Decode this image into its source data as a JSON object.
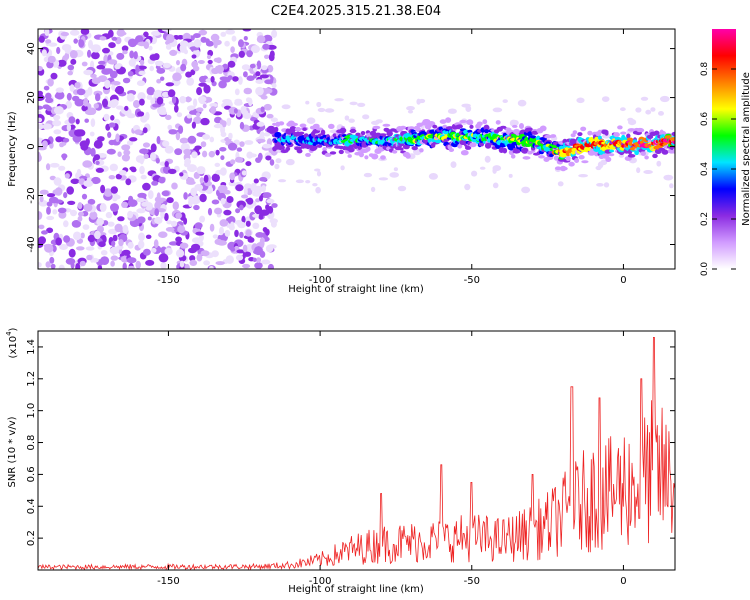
{
  "figure": {
    "title": "C2E4.2025.315.21.38.E04"
  },
  "chart_data": [
    {
      "type": "heatmap",
      "xlabel": "Height of straight line (km)",
      "ylabel": "Frequency (Hz)",
      "xlim": [
        -193,
        17
      ],
      "ylim": [
        -50,
        48
      ],
      "x_ticks": [
        -150,
        -100,
        -50,
        0
      ],
      "y_ticks": [
        -40,
        -20,
        0,
        20,
        40
      ],
      "colorbar": {
        "label": "Normalized spectral amplitude",
        "range": [
          0,
          0.96
        ],
        "ticks": [
          0.0,
          0.2,
          0.4,
          0.6,
          0.8
        ],
        "colors": [
          "#ffffff",
          "#d19bff",
          "#8b2be2",
          "#0000ff",
          "#00e5ff",
          "#00ff00",
          "#ffff00",
          "#ff7f00",
          "#ff0000",
          "#ff00aa"
        ]
      },
      "noise_region": {
        "x_range": [
          -193,
          -115
        ],
        "freq_range": [
          -50,
          48
        ],
        "typical_amplitude": 0.1
      },
      "signal_ridge": {
        "x": [
          -115,
          -110,
          -100,
          -90,
          -80,
          -70,
          -60,
          -50,
          -40,
          -30,
          -25,
          -20,
          -15,
          -10,
          -5,
          0,
          5,
          10,
          15,
          17
        ],
        "freq": [
          3,
          3,
          2,
          3,
          2,
          3,
          4,
          4,
          3,
          2,
          0,
          -3,
          0,
          1,
          1,
          1,
          1,
          1,
          2,
          2
        ],
        "amplitude": [
          0.3,
          0.4,
          0.35,
          0.45,
          0.4,
          0.5,
          0.55,
          0.5,
          0.55,
          0.6,
          0.5,
          0.7,
          0.75,
          0.8,
          0.75,
          0.8,
          0.85,
          0.8,
          0.9,
          0.85
        ]
      }
    },
    {
      "type": "line",
      "xlabel": "Height of straight line (km)",
      "ylabel": "SNR (10 * v/v)",
      "y_multiplier": "(x10",
      "y_multiplier_exp": "4",
      "y_multiplier_close": ")",
      "xlim": [
        -193,
        17
      ],
      "ylim": [
        0,
        15000
      ],
      "x_ticks": [
        -150,
        -100,
        -50,
        0
      ],
      "y_ticks": [
        0.2,
        0.4,
        0.6,
        0.8,
        1.0,
        1.2,
        1.4
      ],
      "series": [
        {
          "color": "#ee2222",
          "envelope_x": [
            -193,
            -120,
            -110,
            -100,
            -95,
            -90,
            -80,
            -70,
            -60,
            -50,
            -40,
            -30,
            -25,
            -20,
            -15,
            -10,
            -5,
            0,
            5,
            10,
            15,
            17
          ],
          "envelope_y": [
            300,
            350,
            500,
            1000,
            1500,
            2000,
            2600,
            2800,
            3000,
            3300,
            3000,
            3800,
            4500,
            5500,
            6500,
            7500,
            7500,
            8500,
            8500,
            10000,
            9000,
            9000
          ],
          "peaks": [
            {
              "x": -80,
              "y": 4800
            },
            {
              "x": -60,
              "y": 6600
            },
            {
              "x": -50,
              "y": 5500
            },
            {
              "x": -30,
              "y": 6000
            },
            {
              "x": -17,
              "y": 11500
            },
            {
              "x": -8,
              "y": 10800
            },
            {
              "x": 10,
              "y": 14600
            },
            {
              "x": 6,
              "y": 12000
            }
          ]
        }
      ]
    }
  ]
}
